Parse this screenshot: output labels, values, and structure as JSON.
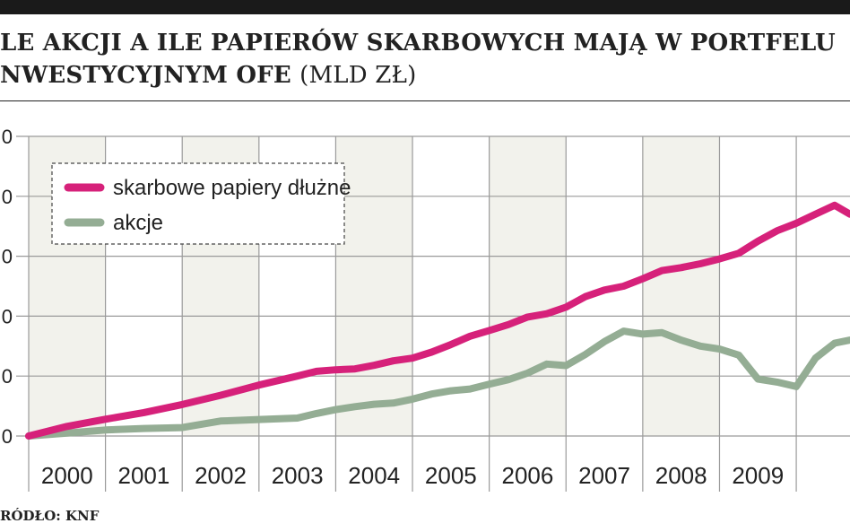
{
  "title": {
    "main": "LE AKCJI A ILE PAPIERÓW SKARBOWYCH MAJĄ W PORTFELU",
    "line2": "NWESTYCYJNYM OFE",
    "unit": "(MLD ZŁ)"
  },
  "source": "RÓDŁO: KNF",
  "colors": {
    "series_bonds": "#d6217a",
    "series_stocks": "#94ad94",
    "band": "#f2f2ec",
    "grid": "#9a9a9a",
    "text": "#222222"
  },
  "chart_data": {
    "type": "line",
    "x_categories": [
      "2000",
      "2001",
      "2002",
      "2003",
      "2004",
      "2005",
      "2006",
      "2007",
      "2008",
      "2009"
    ],
    "xlim": [
      1999.5,
      2010.2
    ],
    "ylim": [
      0,
      100
    ],
    "y_ticks": [
      0,
      20,
      40,
      60,
      80,
      100
    ],
    "y_tick_labels": [
      "0",
      "0",
      "0",
      "0",
      "0",
      "0"
    ],
    "shaded_years": [
      "2000",
      "2002",
      "2004",
      "2006",
      "2008"
    ],
    "grid": true,
    "legend_position": "top-left",
    "series": [
      {
        "name": "skarbowe papiery dłużne",
        "x": [
          1999.5,
          2000.0,
          2000.5,
          2001.0,
          2001.5,
          2002.0,
          2002.5,
          2003.0,
          2003.25,
          2003.5,
          2003.75,
          2004.0,
          2004.25,
          2004.5,
          2004.75,
          2005.0,
          2005.25,
          2005.5,
          2005.75,
          2006.0,
          2006.25,
          2006.5,
          2006.75,
          2007.0,
          2007.25,
          2007.5,
          2007.75,
          2008.0,
          2008.25,
          2008.5,
          2008.75,
          2009.0,
          2009.25,
          2009.5,
          2009.75,
          2010.0,
          2010.2
        ],
        "values": [
          0,
          3.2,
          5.6,
          7.8,
          10.5,
          13.6,
          17.0,
          20.0,
          21.6,
          22.1,
          22.4,
          23.6,
          25.1,
          26.0,
          28.0,
          30.5,
          33.3,
          35.2,
          37.2,
          39.7,
          40.8,
          43.0,
          46.5,
          48.7,
          50.0,
          52.5,
          55.2,
          56.2,
          57.5,
          59.1,
          61.0,
          65.0,
          68.5,
          71.0,
          74.0,
          77.0,
          74.0
        ]
      },
      {
        "name": "akcje",
        "x": [
          1999.5,
          2000.0,
          2000.5,
          2001.0,
          2001.5,
          2002.0,
          2002.5,
          2003.0,
          2003.25,
          2003.5,
          2003.75,
          2004.0,
          2004.25,
          2004.5,
          2004.75,
          2005.0,
          2005.25,
          2005.5,
          2005.75,
          2006.0,
          2006.25,
          2006.5,
          2006.75,
          2007.0,
          2007.25,
          2007.5,
          2007.75,
          2008.0,
          2008.25,
          2008.5,
          2008.75,
          2009.0,
          2009.25,
          2009.5,
          2009.75,
          2010.0,
          2010.2
        ],
        "values": [
          0,
          1.0,
          2.0,
          2.5,
          2.8,
          5.0,
          5.5,
          6.0,
          7.5,
          8.8,
          9.8,
          10.6,
          11.0,
          12.3,
          14.0,
          15.1,
          15.7,
          17.3,
          18.8,
          21.0,
          24.0,
          23.5,
          27.2,
          31.5,
          35.0,
          34.0,
          34.5,
          32.0,
          30.0,
          29.0,
          27.0,
          19.0,
          18.0,
          16.5,
          26.0,
          31.0,
          32.0
        ]
      }
    ]
  }
}
